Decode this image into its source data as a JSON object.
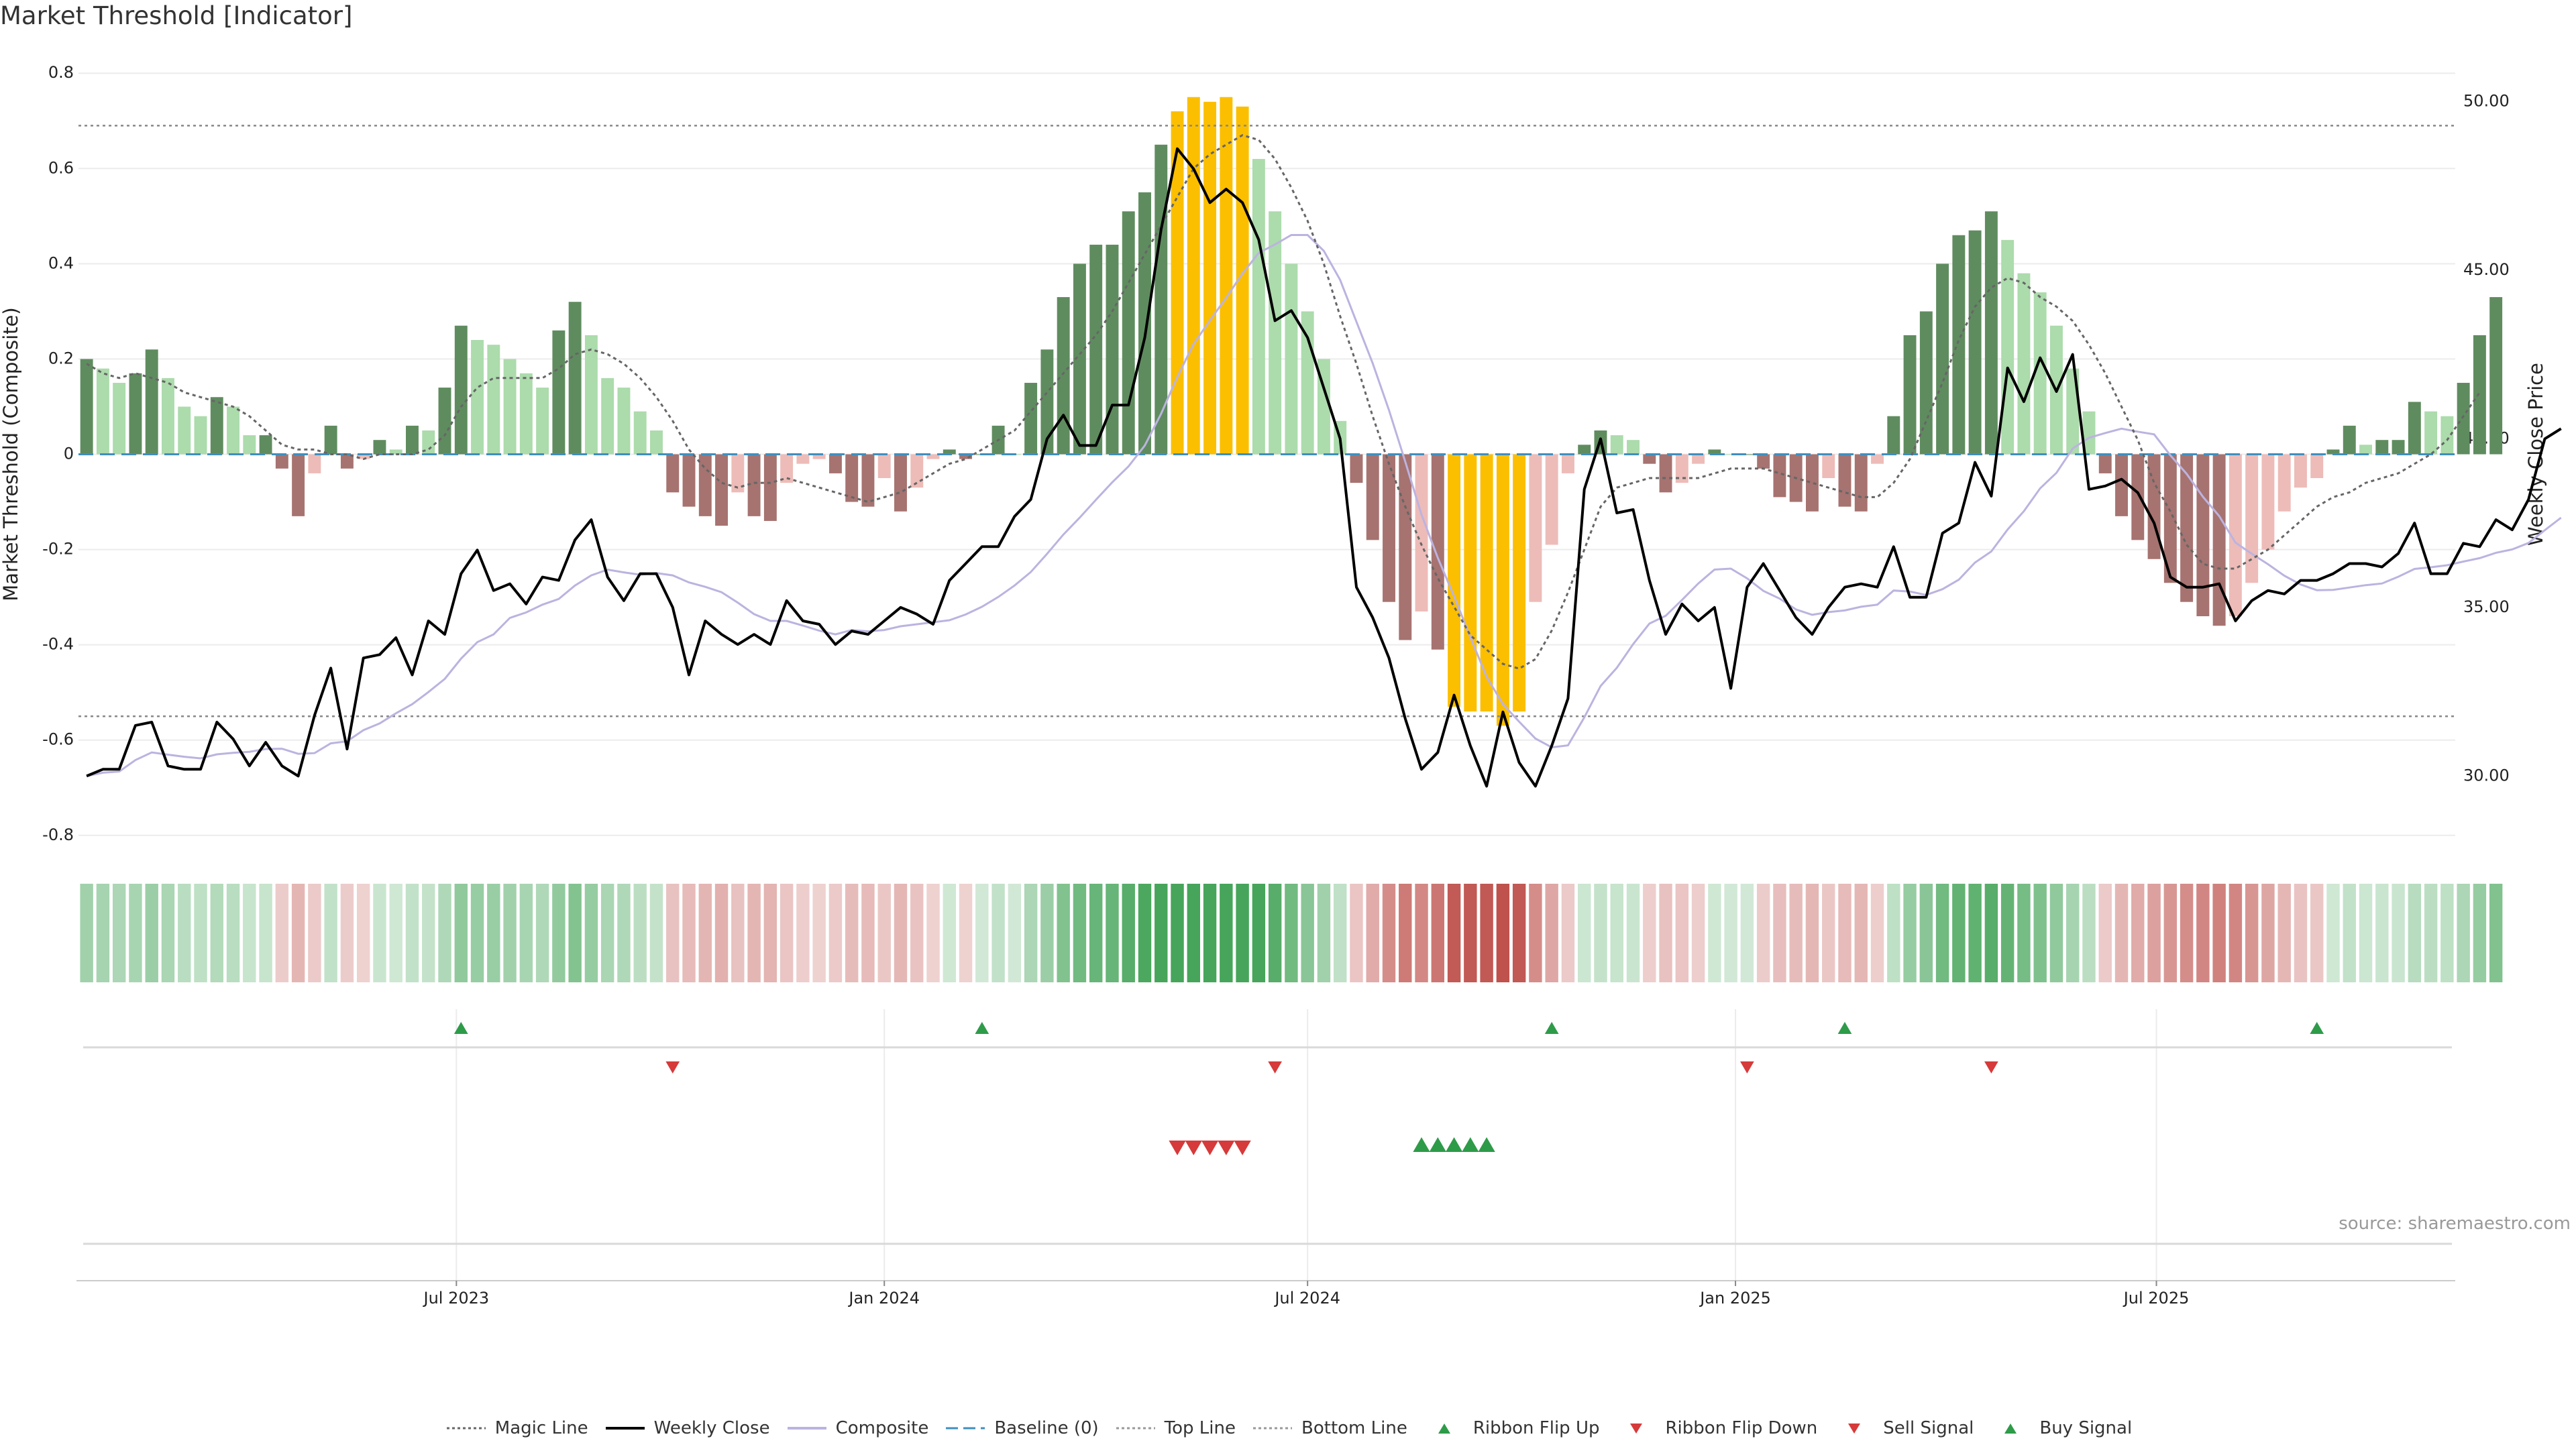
{
  "title": "Market Threshold [Indicator]",
  "source": "source: sharemaestro.com",
  "chart_data": {
    "type": "bar",
    "x": [
      "2023-01-23",
      "2023-01-30",
      "2023-02-06",
      "2023-02-13",
      "2023-02-20",
      "2023-02-27",
      "2023-03-06",
      "2023-03-13",
      "2023-03-20",
      "2023-03-27",
      "2023-04-03",
      "2023-04-10",
      "2023-04-17",
      "2023-04-24",
      "2023-05-01",
      "2023-05-08",
      "2023-05-15",
      "2023-05-22",
      "2023-05-29",
      "2023-06-05",
      "2023-06-12",
      "2023-06-19",
      "2023-06-26",
      "2023-07-03",
      "2023-07-10",
      "2023-07-17",
      "2023-07-24",
      "2023-07-31",
      "2023-08-07",
      "2023-08-14",
      "2023-08-21",
      "2023-08-28",
      "2023-09-04",
      "2023-09-11",
      "2023-09-18",
      "2023-09-25",
      "2023-10-02",
      "2023-10-09",
      "2023-10-16",
      "2023-10-23",
      "2023-10-30",
      "2023-11-06",
      "2023-11-13",
      "2023-11-20",
      "2023-11-27",
      "2023-12-04",
      "2023-12-11",
      "2023-12-18",
      "2023-12-25",
      "2024-01-01",
      "2024-01-08",
      "2024-01-15",
      "2024-01-22",
      "2024-01-29",
      "2024-02-05",
      "2024-02-12",
      "2024-02-19",
      "2024-02-26",
      "2024-03-04",
      "2024-03-11",
      "2024-03-18",
      "2024-03-25",
      "2024-04-01",
      "2024-04-08",
      "2024-04-15",
      "2024-04-22",
      "2024-04-29",
      "2024-05-06",
      "2024-05-13",
      "2024-05-20",
      "2024-05-27",
      "2024-06-03",
      "2024-06-10",
      "2024-06-17",
      "2024-06-24",
      "2024-07-01",
      "2024-07-08",
      "2024-07-15",
      "2024-07-22",
      "2024-07-29",
      "2024-08-05",
      "2024-08-12",
      "2024-08-19",
      "2024-08-26",
      "2024-09-02",
      "2024-09-09",
      "2024-09-16",
      "2024-09-23",
      "2024-09-30",
      "2024-10-07",
      "2024-10-14",
      "2024-10-21",
      "2024-10-28",
      "2024-11-04",
      "2024-11-11",
      "2024-11-18",
      "2024-11-25",
      "2024-12-02",
      "2024-12-09",
      "2024-12-16",
      "2024-12-23",
      "2024-12-30",
      "2025-01-06",
      "2025-01-13",
      "2025-01-20",
      "2025-01-27",
      "2025-02-03",
      "2025-02-10",
      "2025-02-17",
      "2025-02-24",
      "2025-03-03",
      "2025-03-10",
      "2025-03-17",
      "2025-03-24",
      "2025-03-31",
      "2025-04-07",
      "2025-04-14",
      "2025-04-21",
      "2025-04-28",
      "2025-05-05",
      "2025-05-12",
      "2025-05-19",
      "2025-05-26",
      "2025-06-02",
      "2025-06-09",
      "2025-06-16",
      "2025-06-23",
      "2025-06-30",
      "2025-07-07",
      "2025-07-14",
      "2025-07-21",
      "2025-07-28",
      "2025-08-04",
      "2025-08-11",
      "2025-08-18",
      "2025-08-25",
      "2025-09-01",
      "2025-09-08",
      "2025-09-15",
      "2025-09-22",
      "2025-09-29",
      "2025-10-06",
      "2025-10-13",
      "2025-10-20",
      "2025-10-27",
      "2025-11-03"
    ],
    "composite": [
      0.2,
      0.18,
      0.15,
      0.17,
      0.22,
      0.16,
      0.1,
      0.08,
      0.12,
      0.1,
      0.04,
      0.04,
      -0.03,
      -0.13,
      -0.04,
      0.06,
      -0.03,
      -0.01,
      0.03,
      0.01,
      0.06,
      0.05,
      0.14,
      0.27,
      0.24,
      0.23,
      0.2,
      0.17,
      0.14,
      0.26,
      0.32,
      0.25,
      0.16,
      0.14,
      0.09,
      0.05,
      -0.08,
      -0.11,
      -0.13,
      -0.15,
      -0.08,
      -0.13,
      -0.14,
      -0.06,
      -0.02,
      -0.01,
      -0.04,
      -0.1,
      -0.11,
      -0.05,
      -0.12,
      -0.07,
      -0.01,
      0.01,
      -0.01,
      0.0,
      0.06,
      0.0,
      0.15,
      0.22,
      0.33,
      0.4,
      0.44,
      0.44,
      0.51,
      0.55,
      0.65,
      0.72,
      0.75,
      0.74,
      0.75,
      0.73,
      0.62,
      0.51,
      0.4,
      0.3,
      0.2,
      0.07,
      -0.06,
      -0.18,
      -0.31,
      -0.39,
      -0.33,
      -0.41,
      -0.53,
      -0.54,
      -0.54,
      -0.57,
      -0.54,
      -0.31,
      -0.19,
      -0.04,
      0.02,
      0.05,
      0.04,
      0.03,
      -0.02,
      -0.08,
      -0.06,
      -0.02,
      0.01,
      0.0,
      0.0,
      -0.03,
      -0.09,
      -0.1,
      -0.12,
      -0.05,
      -0.11,
      -0.12,
      -0.02,
      0.08,
      0.25,
      0.3,
      0.4,
      0.46,
      0.47,
      0.51,
      0.45,
      0.38,
      0.34,
      0.27,
      0.18,
      0.09,
      -0.04,
      -0.13,
      -0.18,
      -0.22,
      -0.27,
      -0.31,
      -0.34,
      -0.36,
      -0.34,
      -0.27,
      -0.2,
      -0.12,
      -0.07,
      -0.05,
      0.01,
      0.06,
      0.02,
      0.03,
      0.03,
      0.11,
      0.09,
      0.08,
      0.15,
      0.25,
      0.33
    ],
    "magic_line": [
      0.19,
      0.17,
      0.16,
      0.17,
      0.16,
      0.15,
      0.13,
      0.12,
      0.11,
      0.1,
      0.08,
      0.05,
      0.02,
      0.01,
      0.01,
      0.0,
      0.0,
      -0.01,
      0.0,
      0.0,
      0.0,
      0.01,
      0.04,
      0.1,
      0.14,
      0.16,
      0.16,
      0.16,
      0.16,
      0.18,
      0.21,
      0.22,
      0.21,
      0.19,
      0.16,
      0.12,
      0.07,
      0.01,
      -0.03,
      -0.06,
      -0.07,
      -0.06,
      -0.06,
      -0.05,
      -0.06,
      -0.07,
      -0.08,
      -0.09,
      -0.1,
      -0.09,
      -0.08,
      -0.06,
      -0.04,
      -0.02,
      -0.01,
      0.01,
      0.03,
      0.05,
      0.09,
      0.13,
      0.17,
      0.21,
      0.25,
      0.3,
      0.36,
      0.42,
      0.48,
      0.54,
      0.6,
      0.63,
      0.65,
      0.67,
      0.66,
      0.62,
      0.56,
      0.49,
      0.4,
      0.29,
      0.19,
      0.08,
      -0.02,
      -0.11,
      -0.19,
      -0.26,
      -0.32,
      -0.38,
      -0.41,
      -0.44,
      -0.45,
      -0.43,
      -0.37,
      -0.29,
      -0.2,
      -0.11,
      -0.07,
      -0.06,
      -0.05,
      -0.05,
      -0.05,
      -0.05,
      -0.04,
      -0.03,
      -0.03,
      -0.03,
      -0.04,
      -0.05,
      -0.06,
      -0.07,
      -0.08,
      -0.09,
      -0.09,
      -0.06,
      -0.01,
      0.07,
      0.15,
      0.24,
      0.31,
      0.35,
      0.37,
      0.36,
      0.33,
      0.31,
      0.28,
      0.23,
      0.17,
      0.1,
      0.03,
      -0.06,
      -0.12,
      -0.19,
      -0.23,
      -0.24,
      -0.24,
      -0.22,
      -0.2,
      -0.17,
      -0.14,
      -0.11,
      -0.09,
      -0.08,
      -0.06,
      -0.05,
      -0.04,
      -0.02,
      0.0,
      0.03,
      0.08,
      0.13
    ],
    "weekly_close": [
      30.0,
      30.2,
      30.2,
      31.5,
      31.6,
      30.3,
      30.2,
      30.2,
      31.6,
      31.1,
      30.3,
      31.0,
      30.3,
      30.0,
      31.8,
      33.2,
      30.8,
      33.5,
      33.6,
      34.1,
      33.0,
      34.6,
      34.2,
      36.0,
      36.7,
      35.5,
      35.7,
      35.1,
      35.9,
      35.8,
      37.0,
      37.6,
      35.9,
      35.2,
      36.0,
      36.0,
      35.0,
      33.0,
      34.6,
      34.2,
      33.9,
      34.2,
      33.9,
      35.2,
      34.6,
      34.5,
      33.9,
      34.3,
      34.2,
      34.6,
      35.0,
      34.8,
      34.5,
      35.8,
      36.3,
      36.8,
      36.8,
      37.7,
      38.2,
      40.0,
      40.7,
      39.8,
      39.8,
      41.0,
      41.0,
      43.0,
      46.2,
      48.6,
      48.0,
      47.0,
      47.4,
      47.0,
      45.9,
      43.5,
      43.8,
      43.0,
      41.5,
      40.0,
      35.6,
      34.7,
      33.5,
      31.7,
      30.2,
      30.7,
      32.4,
      30.9,
      29.7,
      31.9,
      30.4,
      29.7,
      30.9,
      32.3,
      38.5,
      40.0,
      37.8,
      37.9,
      35.8,
      34.2,
      35.1,
      34.6,
      35.0,
      32.6,
      35.6,
      36.3,
      35.5,
      34.7,
      34.2,
      35.0,
      35.6,
      35.7,
      35.6,
      36.8,
      35.3,
      35.3,
      37.2,
      37.5,
      39.3,
      38.3,
      42.1,
      41.1,
      42.4,
      41.4,
      42.5,
      38.5,
      38.6,
      38.8,
      38.4,
      37.5,
      35.9,
      35.6,
      35.6,
      35.7,
      34.6,
      35.2,
      35.5,
      35.4,
      35.8,
      35.8,
      36.0,
      36.3,
      36.3,
      36.2,
      36.6,
      37.5,
      36.0,
      36.0,
      36.9,
      36.8,
      37.6,
      37.3,
      38.2,
      40.0,
      40.3
    ],
    "ylim": [
      -0.82,
      0.82
    ],
    "ylim_price": [
      27.96,
      51.12
    ],
    "yticks": [
      -0.8,
      -0.6,
      -0.4,
      -0.2,
      0,
      0.2,
      0.4,
      0.6,
      0.8
    ],
    "price_ticks": [
      "30.00",
      "35.00",
      "40.00",
      "45.00",
      "50.00"
    ],
    "xticks": [
      {
        "date": "2023-07-01",
        "label": "Jul 2023"
      },
      {
        "date": "2024-01-01",
        "label": "Jan 2024"
      },
      {
        "date": "2024-07-01",
        "label": "Jul 2024"
      },
      {
        "date": "2025-01-01",
        "label": "Jan 2025"
      },
      {
        "date": "2025-07-01",
        "label": "Jul 2025"
      }
    ],
    "ylabel": "Market Threshold (Composite)",
    "ylabel_right": "Weekly Close Price",
    "top_line": 0.69,
    "bottom_line": -0.55,
    "baseline": 0,
    "ribbon_flip_up": [
      "2023-07-03",
      "2024-02-12",
      "2024-10-14",
      "2025-02-17",
      "2025-09-08"
    ],
    "ribbon_flip_down": [
      "2023-10-02",
      "2024-06-17",
      "2025-01-06",
      "2025-04-21"
    ],
    "sell_signal": [
      "2024-05-06",
      "2024-05-13",
      "2024-05-20",
      "2024-05-27",
      "2024-06-03"
    ],
    "buy_signal": [
      "2024-08-19",
      "2024-08-26",
      "2024-09-02",
      "2024-09-09",
      "2024-09-16"
    ],
    "grid": true,
    "legend_position": "bottom"
  },
  "colors": {
    "strong_pos": "#5f8c5f",
    "weak_pos": "#acdbac",
    "strong_neg": "#a67370",
    "weak_neg": "#edbcb8",
    "extreme": "#fbbf00",
    "composite_line": "#bcb3e0",
    "close_line": "#000000",
    "magic_line": "#666666",
    "baseline": "#3f8fbf",
    "up_marker": "#2e9b49",
    "down_marker": "#d63a3a"
  },
  "legend": [
    {
      "label": "Magic Line",
      "kind": "dotted-line",
      "color": "#666666"
    },
    {
      "label": "Weekly Close",
      "kind": "solid-line",
      "color": "#000000"
    },
    {
      "label": "Composite",
      "kind": "solid-line",
      "color": "#bcb3e0"
    },
    {
      "label": "Baseline (0)",
      "kind": "dashed-line",
      "color": "#3f8fbf"
    },
    {
      "label": "Top Line",
      "kind": "dotted-line",
      "color": "#999999"
    },
    {
      "label": "Bottom Line",
      "kind": "dotted-line",
      "color": "#999999"
    },
    {
      "label": "Ribbon Flip Up",
      "kind": "triangle-up",
      "color": "#2e9b49"
    },
    {
      "label": "Ribbon Flip Down",
      "kind": "triangle-down",
      "color": "#d63a3a"
    },
    {
      "label": "Sell Signal",
      "kind": "triangle-down",
      "color": "#d63a3a"
    },
    {
      "label": "Buy Signal",
      "kind": "triangle-up",
      "color": "#2e9b49"
    }
  ]
}
